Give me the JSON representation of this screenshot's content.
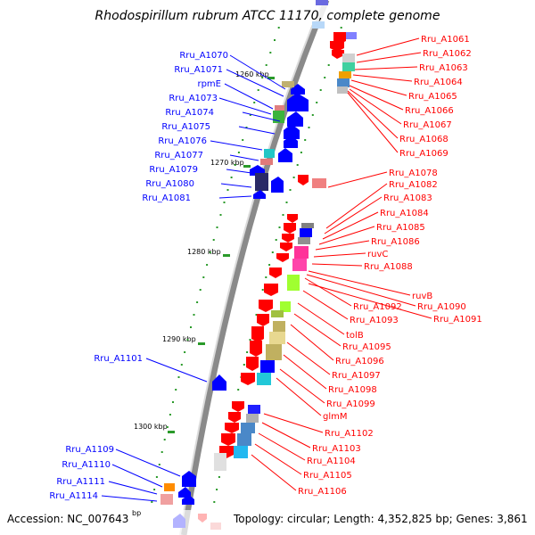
{
  "title": "Rhodospirillum rubrum ATCC 11170, complete genome",
  "footer": {
    "accession": "Accession: NC_007643",
    "topology": "Topology: circular; Length: 4,352,825 bp; Genes: 3,861",
    "unit_fragment": "bp"
  },
  "colors": {
    "forward": "#0000ff",
    "reverse": "#ff0000",
    "backbone": "#888888",
    "tick": "#2a9a2a"
  },
  "kbp_ticks": [
    "1260 kbp",
    "1270 kbp",
    "1280 kbp",
    "1290 kbp",
    "1300 kbp"
  ],
  "left_labels": [
    "Rru_A1070",
    "Rru_A1071",
    "rpmE",
    "Rru_A1073",
    "Rru_A1074",
    "Rru_A1075",
    "Rru_A1076",
    "Rru_A1077",
    "Rru_A1079",
    "Rru_A1080",
    "Rru_A1081",
    "Rru_A1101",
    "Rru_A1109",
    "Rru_A1110",
    "Rru_A1111",
    "Rru_A1114"
  ],
  "right_labels": [
    "Rru_A1061",
    "Rru_A1062",
    "Rru_A1063",
    "Rru_A1064",
    "Rru_A1065",
    "Rru_A1066",
    "Rru_A1067",
    "Rru_A1068",
    "Rru_A1069",
    "Rru_A1078",
    "Rru_A1082",
    "Rru_A1083",
    "Rru_A1084",
    "Rru_A1085",
    "Rru_A1086",
    "ruvC",
    "Rru_A1088",
    "ruvB",
    "Rru_A1092",
    "Rru_A1090",
    "Rru_A1091",
    "Rru_A1093",
    "tolB",
    "Rru_A1095",
    "Rru_A1096",
    "Rru_A1097",
    "Rru_A1098",
    "Rru_A1099",
    "glmM",
    "Rru_A1102",
    "Rru_A1103",
    "Rru_A1104",
    "Rru_A1105",
    "Rru_A1106"
  ]
}
